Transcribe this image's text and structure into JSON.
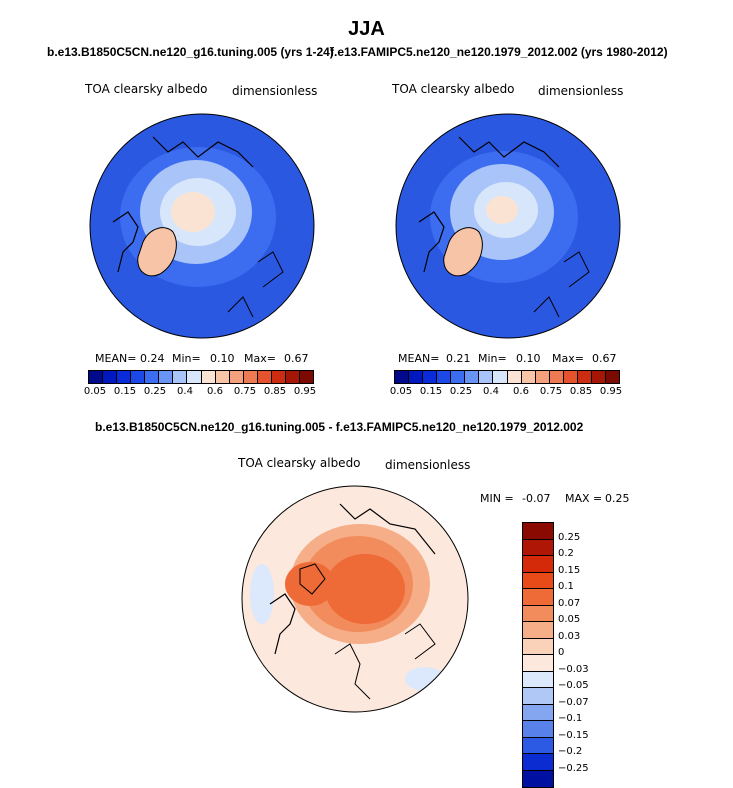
{
  "title": "JJA",
  "panels": [
    {
      "case": "b.e13.B1850C5CN.ne120_g16.tuning.005 (yrs 1-24)",
      "variable": "TOA clearsky albedo",
      "units": "dimensionless",
      "mean_label": "MEAN=",
      "mean": "0.24",
      "min_label": "Min=",
      "min": "0.10",
      "max_label": "Max=",
      "max": "0.67"
    },
    {
      "case": "f.e13.FAMIPC5.ne120_ne120.1979_2012.002 (yrs 1980-2012)",
      "variable": "TOA clearsky albedo",
      "units": "dimensionless",
      "mean_label": "MEAN=",
      "mean": "0.21",
      "min_label": "Min=",
      "min": "0.10",
      "max_label": "Max=",
      "max": "0.67"
    }
  ],
  "diff": {
    "case": "b.e13.B1850C5CN.ne120_g16.tuning.005 - f.e13.FAMIPC5.ne120_ne120.1979_2012.002",
    "variable": "TOA clearsky albedo",
    "units": "dimensionless",
    "min_label": "MIN =",
    "min": "-0.07",
    "max_label": "MAX =",
    "max": "0.25"
  },
  "colorbar_abs": {
    "labels": [
      "0.05",
      "0.15",
      "0.25",
      "0.4",
      "0.6",
      "0.75",
      "0.85",
      "0.95"
    ],
    "colors": [
      "#000a8a",
      "#0018c0",
      "#0a2cd8",
      "#1c48e8",
      "#3c6cf0",
      "#6a94f4",
      "#a8c4f8",
      "#d8e6fb",
      "#fbe3d4",
      "#f8c4a8",
      "#f4a07c",
      "#ee7a54",
      "#e4522e",
      "#cc2c12",
      "#a61606",
      "#7a0a02"
    ]
  },
  "colorbar_diff": {
    "labels": [
      "0.25",
      "0.2",
      "0.15",
      "0.1",
      "0.07",
      "0.05",
      "0.03",
      "0",
      "-0.03",
      "-0.05",
      "-0.07",
      "-0.1",
      "-0.15",
      "-0.2",
      "-0.25"
    ],
    "colors": [
      "#8a0a02",
      "#b01606",
      "#d42a0a",
      "#e84a18",
      "#ee6a36",
      "#f28c5c",
      "#f6ae88",
      "#fad2ba",
      "#fce8dc",
      "#dce8fb",
      "#b0c8f6",
      "#84a6f0",
      "#5882ea",
      "#2c5ae4",
      "#0a2cd0",
      "#0010a0"
    ]
  },
  "colors": {
    "ocean_abs": "#2a58e0",
    "ice_abs": "#fbe3d4",
    "diff_bg": "#fce8dc",
    "diff_hot": "#e84a18"
  }
}
